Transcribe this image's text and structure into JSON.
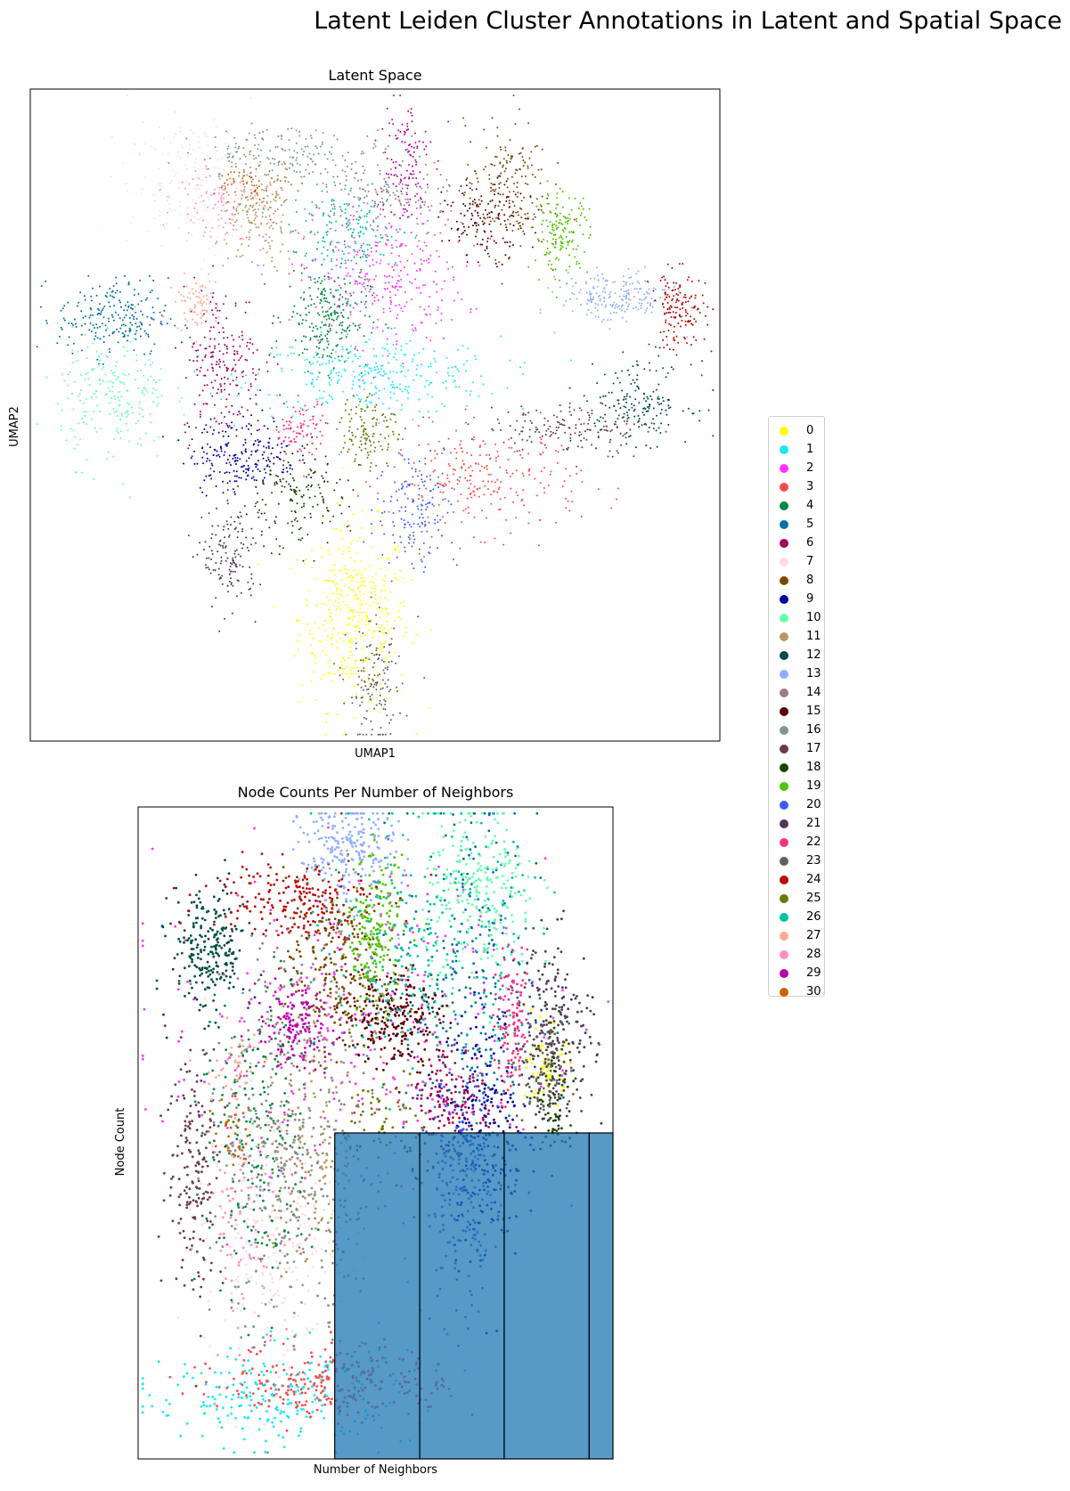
{
  "figure": {
    "title": "Latent Leiden Cluster Annotations in Latent and Spatial Space"
  },
  "panels": {
    "latent": {
      "title": "Latent Space",
      "xlabel": "UMAP1",
      "ylabel": "UMAP2"
    },
    "spatial": {
      "title": "Node Counts Per Number of Neighbors",
      "xlabel": "Number of Neighbors",
      "ylabel": "Node Count"
    }
  },
  "legend": {
    "items": [
      {
        "label": "0",
        "color": "#ffff00"
      },
      {
        "label": "1",
        "color": "#1ce6ff"
      },
      {
        "label": "2",
        "color": "#ff34ff"
      },
      {
        "label": "3",
        "color": "#ff4a46"
      },
      {
        "label": "4",
        "color": "#008941"
      },
      {
        "label": "5",
        "color": "#006fa6"
      },
      {
        "label": "6",
        "color": "#a30059"
      },
      {
        "label": "7",
        "color": "#ffdbe5"
      },
      {
        "label": "8",
        "color": "#7a4900"
      },
      {
        "label": "9",
        "color": "#0000a6"
      },
      {
        "label": "10",
        "color": "#63ffac"
      },
      {
        "label": "11",
        "color": "#b79762"
      },
      {
        "label": "12",
        "color": "#004d43"
      },
      {
        "label": "13",
        "color": "#8fb0ff"
      },
      {
        "label": "14",
        "color": "#997d87"
      },
      {
        "label": "15",
        "color": "#5a0007"
      },
      {
        "label": "16",
        "color": "#809693"
      },
      {
        "label": "17",
        "color": "#6a3a4c"
      },
      {
        "label": "18",
        "color": "#1b4400"
      },
      {
        "label": "19",
        "color": "#4fc601"
      },
      {
        "label": "20",
        "color": "#3b5dff"
      },
      {
        "label": "21",
        "color": "#4a3b53"
      },
      {
        "label": "22",
        "color": "#ff2f80"
      },
      {
        "label": "23",
        "color": "#61615a"
      },
      {
        "label": "24",
        "color": "#ba0900"
      },
      {
        "label": "25",
        "color": "#6b7900"
      },
      {
        "label": "26",
        "color": "#00c2a0"
      },
      {
        "label": "27",
        "color": "#ffaa92"
      },
      {
        "label": "28",
        "color": "#ff90c9"
      },
      {
        "label": "29",
        "color": "#b903aa"
      },
      {
        "label": "30",
        "color": "#d16100"
      }
    ]
  },
  "chart_data": [
    {
      "type": "scatter",
      "title": "Latent Space",
      "xlabel": "UMAP1",
      "ylabel": "UMAP2",
      "xlim": [
        0,
        100
      ],
      "ylim": [
        0,
        100
      ],
      "grid": false,
      "legend": "right, outside",
      "clusters": [
        {
          "name": "0",
          "x": 47,
          "y": 19,
          "sx": 4,
          "sy": 7,
          "n": 400
        },
        {
          "name": "1",
          "x": 50,
          "y": 56,
          "sx": 9,
          "sy": 3,
          "n": 320
        },
        {
          "name": "2",
          "x": 51,
          "y": 71,
          "sx": 6,
          "sy": 5,
          "n": 300
        },
        {
          "name": "3",
          "x": 66,
          "y": 40,
          "sx": 7,
          "sy": 4,
          "n": 260
        },
        {
          "name": "4",
          "x": 43,
          "y": 65,
          "sx": 3,
          "sy": 4,
          "n": 240
        },
        {
          "name": "5",
          "x": 12,
          "y": 65,
          "sx": 4,
          "sy": 3,
          "n": 220
        },
        {
          "name": "6",
          "x": 28,
          "y": 58,
          "sx": 3,
          "sy": 6,
          "n": 220
        },
        {
          "name": "7",
          "x": 24,
          "y": 85,
          "sx": 5,
          "sy": 5,
          "n": 220
        },
        {
          "name": "8",
          "x": 69,
          "y": 85,
          "sx": 3,
          "sy": 5,
          "n": 180
        },
        {
          "name": "9",
          "x": 31,
          "y": 44,
          "sx": 4,
          "sy": 3,
          "n": 220
        },
        {
          "name": "10",
          "x": 12,
          "y": 53,
          "sx": 4,
          "sy": 5,
          "n": 220
        },
        {
          "name": "11",
          "x": 33,
          "y": 80,
          "sx": 3,
          "sy": 4,
          "n": 180
        },
        {
          "name": "12",
          "x": 88,
          "y": 52,
          "sx": 4,
          "sy": 3,
          "n": 180
        },
        {
          "name": "13",
          "x": 85,
          "y": 68,
          "sx": 4,
          "sy": 2,
          "n": 200
        },
        {
          "name": "14",
          "x": 51,
          "y": 83,
          "sx": 5,
          "sy": 3,
          "n": 160
        },
        {
          "name": "15",
          "x": 66,
          "y": 80,
          "sx": 3,
          "sy": 3,
          "n": 150
        },
        {
          "name": "16",
          "x": 38,
          "y": 90,
          "sx": 7,
          "sy": 2,
          "n": 180
        },
        {
          "name": "17",
          "x": 78,
          "y": 48,
          "sx": 6,
          "sy": 2,
          "n": 150
        },
        {
          "name": "18",
          "x": 38,
          "y": 37,
          "sx": 4,
          "sy": 4,
          "n": 160
        },
        {
          "name": "19",
          "x": 77,
          "y": 78,
          "sx": 2,
          "sy": 3,
          "n": 160
        },
        {
          "name": "20",
          "x": 56,
          "y": 36,
          "sx": 3,
          "sy": 5,
          "n": 160
        },
        {
          "name": "21",
          "x": 29,
          "y": 28,
          "sx": 2,
          "sy": 4,
          "n": 140
        },
        {
          "name": "22",
          "x": 39,
          "y": 48,
          "sx": 2,
          "sy": 2,
          "n": 90
        },
        {
          "name": "23",
          "x": 50,
          "y": 8,
          "sx": 2,
          "sy": 5,
          "n": 150
        },
        {
          "name": "24",
          "x": 94,
          "y": 66,
          "sx": 2,
          "sy": 3,
          "n": 150
        },
        {
          "name": "25",
          "x": 49,
          "y": 48,
          "sx": 2,
          "sy": 3,
          "n": 120
        },
        {
          "name": "26",
          "x": 46,
          "y": 78,
          "sx": 4,
          "sy": 3,
          "n": 150
        },
        {
          "name": "27",
          "x": 24,
          "y": 67,
          "sx": 1.5,
          "sy": 2,
          "n": 80
        },
        {
          "name": "28",
          "x": 27,
          "y": 83,
          "sx": 3,
          "sy": 3,
          "n": 80
        },
        {
          "name": "29",
          "x": 54,
          "y": 89,
          "sx": 2,
          "sy": 5,
          "n": 120
        },
        {
          "name": "30",
          "x": 33,
          "y": 85,
          "sx": 3,
          "sy": 2,
          "n": 60
        }
      ]
    },
    {
      "type": "scatter",
      "title": "Node Counts Per Number of Neighbors",
      "xlabel": "Number of Neighbors",
      "ylabel": "Node Count",
      "xlim": [
        0,
        100
      ],
      "ylim": [
        0,
        100
      ],
      "grid": false,
      "clusters": [
        {
          "name": "0",
          "x": 86,
          "y": 60,
          "sx": 2,
          "sy": 3,
          "n": 60
        },
        {
          "name": "1",
          "x": 30,
          "y": 10,
          "sx": 14,
          "sy": 4,
          "n": 260
        },
        {
          "name": "2",
          "x": 45,
          "y": 66,
          "sx": 20,
          "sy": 12,
          "n": 300
        },
        {
          "name": "3",
          "x": 42,
          "y": 12,
          "sx": 12,
          "sy": 3,
          "n": 260
        },
        {
          "name": "4",
          "x": 25,
          "y": 48,
          "sx": 6,
          "sy": 12,
          "n": 220
        },
        {
          "name": "5",
          "x": 70,
          "y": 72,
          "sx": 7,
          "sy": 16,
          "n": 280
        },
        {
          "name": "6",
          "x": 66,
          "y": 55,
          "sx": 5,
          "sy": 5,
          "n": 180
        },
        {
          "name": "7",
          "x": 28,
          "y": 35,
          "sx": 7,
          "sy": 10,
          "n": 240
        },
        {
          "name": "8",
          "x": 41,
          "y": 76,
          "sx": 5,
          "sy": 7,
          "n": 240
        },
        {
          "name": "9",
          "x": 73,
          "y": 50,
          "sx": 4,
          "sy": 10,
          "n": 240
        },
        {
          "name": "10",
          "x": 72,
          "y": 86,
          "sx": 6,
          "sy": 7,
          "n": 260
        },
        {
          "name": "11",
          "x": 37,
          "y": 48,
          "sx": 6,
          "sy": 10,
          "n": 200
        },
        {
          "name": "12",
          "x": 15,
          "y": 78,
          "sx": 4,
          "sy": 5,
          "n": 240
        },
        {
          "name": "13",
          "x": 44,
          "y": 93,
          "sx": 5,
          "sy": 4,
          "n": 240
        },
        {
          "name": "14",
          "x": 33,
          "y": 56,
          "sx": 10,
          "sy": 14,
          "n": 200
        },
        {
          "name": "15",
          "x": 54,
          "y": 68,
          "sx": 5,
          "sy": 4,
          "n": 260
        },
        {
          "name": "16",
          "x": 30,
          "y": 40,
          "sx": 8,
          "sy": 12,
          "n": 200
        },
        {
          "name": "17",
          "x": 12,
          "y": 45,
          "sx": 3,
          "sy": 10,
          "n": 180
        },
        {
          "name": "18",
          "x": 88,
          "y": 55,
          "sx": 2,
          "sy": 5,
          "n": 80
        },
        {
          "name": "19",
          "x": 50,
          "y": 80,
          "sx": 3,
          "sy": 6,
          "n": 220
        },
        {
          "name": "20",
          "x": 68,
          "y": 40,
          "sx": 4,
          "sy": 10,
          "n": 180
        },
        {
          "name": "21",
          "x": 88,
          "y": 66,
          "sx": 4,
          "sy": 7,
          "n": 220
        },
        {
          "name": "22",
          "x": 79,
          "y": 66,
          "sx": 2,
          "sy": 5,
          "n": 120
        },
        {
          "name": "23",
          "x": 85,
          "y": 60,
          "sx": 3,
          "sy": 4,
          "n": 90
        },
        {
          "name": "24",
          "x": 32,
          "y": 86,
          "sx": 9,
          "sy": 3,
          "n": 200
        },
        {
          "name": "25",
          "x": 52,
          "y": 52,
          "sx": 4,
          "sy": 4,
          "n": 60
        },
        {
          "name": "26",
          "x": 60,
          "y": 78,
          "sx": 10,
          "sy": 10,
          "n": 240
        },
        {
          "name": "27",
          "x": 20,
          "y": 60,
          "sx": 3,
          "sy": 3,
          "n": 40
        },
        {
          "name": "28",
          "x": 22,
          "y": 38,
          "sx": 4,
          "sy": 8,
          "n": 80
        },
        {
          "name": "29",
          "x": 33,
          "y": 66,
          "sx": 4,
          "sy": 3,
          "n": 150
        },
        {
          "name": "30",
          "x": 20,
          "y": 50,
          "sx": 2,
          "sy": 3,
          "n": 30
        }
      ],
      "histogram": {
        "color": "#1f77b4",
        "alpha": 0.75,
        "bars": [
          {
            "x0": 41.4,
            "x1": 59.3,
            "height": 50
          },
          {
            "x0": 59.3,
            "x1": 77.1,
            "height": 50
          },
          {
            "x0": 77.1,
            "x1": 95.0,
            "height": 50
          },
          {
            "x0": 95.0,
            "x1": 100.0,
            "height": 50
          }
        ]
      }
    }
  ]
}
